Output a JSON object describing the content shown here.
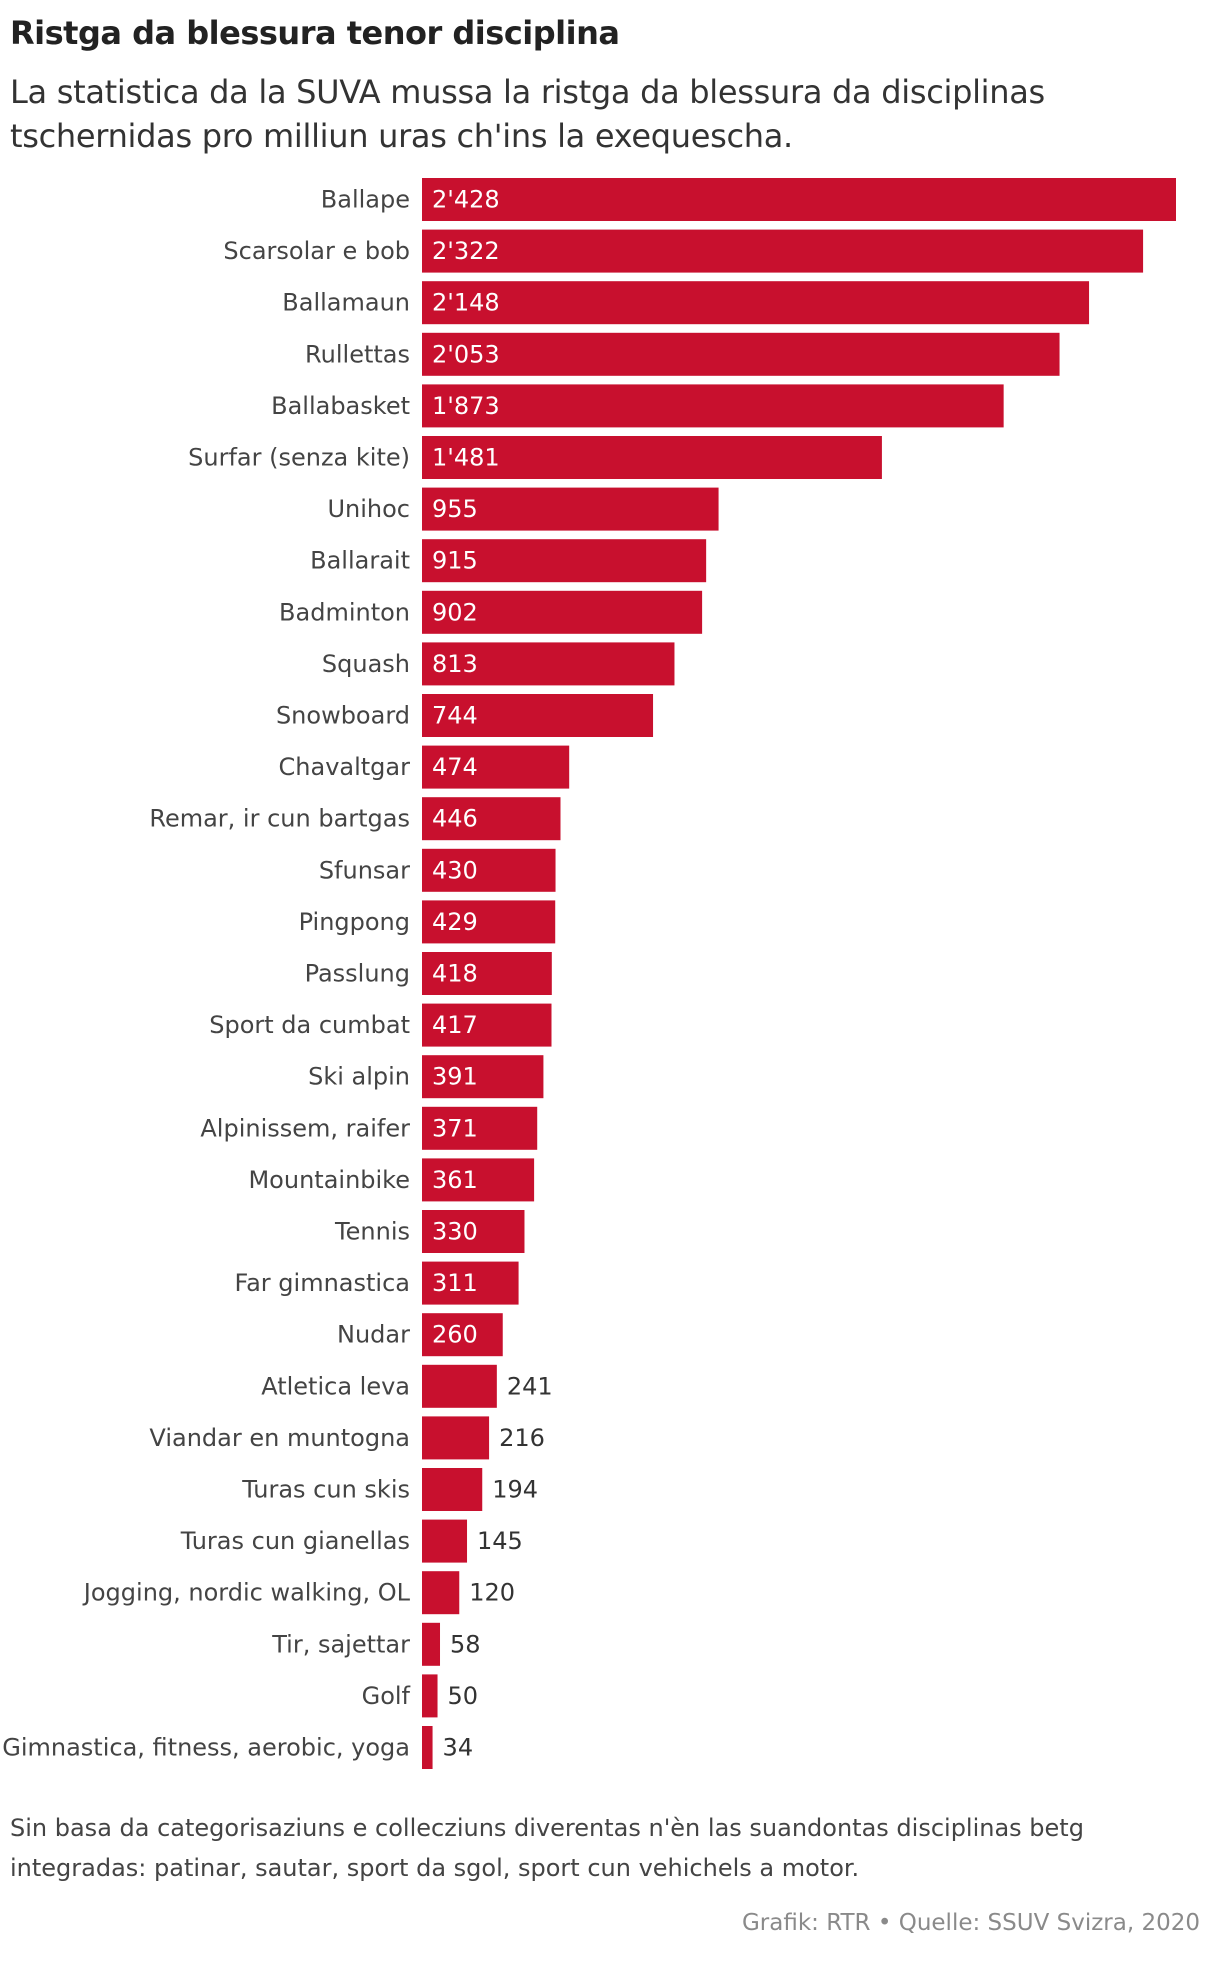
{
  "title": "Ristga da blessura tenor disciplina",
  "subtitle": "La statistica da la SUVA mussa la ristga da blessura da disciplinas tschernidas pro milliun uras ch'ins la exequescha.",
  "note": "Sin basa da categorisaziuns e collecziuns diverentas n'èn las suandontas disciplinas betg integradas: patinar, sautar, sport da sgol, sport cun vehichels a motor.",
  "source": "Grafik: RTR • Quelle: SSUV Svizra, 2020",
  "colors": {
    "bar": "#c8102e",
    "label_inside": "#ffffff",
    "label_outside": "#333333",
    "category_text": "#444444"
  },
  "chart_data": {
    "type": "bar",
    "orientation": "horizontal",
    "categories": [
      "Ballape",
      "Scarsolar e bob",
      "Ballamaun",
      "Rullettas",
      "Ballabasket",
      "Surfar (senza kite)",
      "Unihoc",
      "Ballarait",
      "Badminton",
      "Squash",
      "Snowboard",
      "Chavaltgar",
      "Remar, ir cun bartgas",
      "Sfunsar",
      "Pingpong",
      "Passlung",
      "Sport da cumbat",
      "Ski alpin",
      "Alpinissem, raifer",
      "Mountainbike",
      "Tennis",
      "Far gimnastica",
      "Nudar",
      "Atletica leva",
      "Viandar en muntogna",
      "Turas cun skis",
      "Turas cun gianellas",
      "Jogging, nordic walking, OL",
      "Tir, sajettar",
      "Golf",
      "Gimnastica, fitness, aerobic, yoga"
    ],
    "values": [
      2428,
      2322,
      2148,
      2053,
      1873,
      1481,
      955,
      915,
      902,
      813,
      744,
      474,
      446,
      430,
      429,
      418,
      417,
      391,
      371,
      361,
      330,
      311,
      260,
      241,
      216,
      194,
      145,
      120,
      58,
      50,
      34
    ],
    "value_labels": [
      "2'428",
      "2'322",
      "2'148",
      "2'053",
      "1'873",
      "1'481",
      "955",
      "915",
      "902",
      "813",
      "744",
      "474",
      "446",
      "430",
      "429",
      "418",
      "417",
      "391",
      "371",
      "361",
      "330",
      "311",
      "260",
      "241",
      "216",
      "194",
      "145",
      "120",
      "58",
      "50",
      "34"
    ],
    "xlim": [
      0,
      2428
    ],
    "grid": false,
    "legend": "none"
  }
}
